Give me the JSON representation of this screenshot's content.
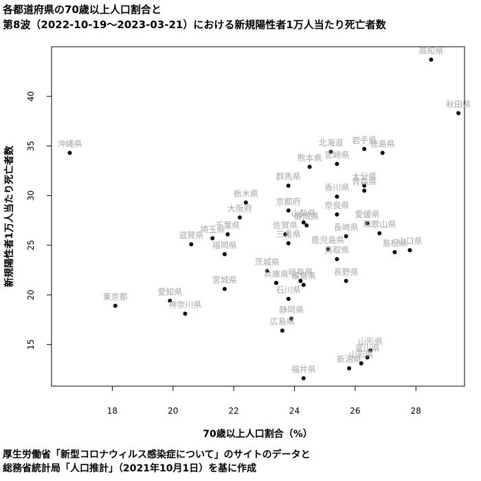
{
  "title_line1": "各都道府県の70歳以上人口割合と",
  "title_line2": "第8波（2022-10-19〜2023-03-21）における新規陽性者1万人当たり死亡者数",
  "footnote_line1": "厚生労働省「新型コロナウィルス感染症について」のサイトのデータと",
  "footnote_line2": "総務省統計局「人口推計」（2021年10月1日）を基に作成",
  "chart_data": {
    "type": "scatter",
    "xlabel": "70歳以上人口割合（%）",
    "ylabel": "新規陽性者1万人当たり死亡者数",
    "xlim": [
      16.0,
      29.6
    ],
    "ylim": [
      10.8,
      45.0
    ],
    "xticks": [
      18,
      20,
      22,
      24,
      26,
      28
    ],
    "yticks": [
      15,
      20,
      25,
      30,
      35,
      40
    ],
    "point_color": "#000000",
    "label_color": "#a6a6a6",
    "points": [
      {
        "label": "高知県",
        "x": 28.5,
        "y": 43.7
      },
      {
        "label": "秋田県",
        "x": 29.4,
        "y": 38.3
      },
      {
        "label": "沖縄県",
        "x": 16.6,
        "y": 34.3
      },
      {
        "label": "北海道",
        "x": 25.2,
        "y": 34.4
      },
      {
        "label": "岩手県",
        "x": 26.3,
        "y": 34.7
      },
      {
        "label": "徳島県",
        "x": 26.9,
        "y": 34.3
      },
      {
        "label": "宮崎県",
        "x": 25.4,
        "y": 33.2
      },
      {
        "label": "熊本県",
        "x": 24.5,
        "y": 32.9
      },
      {
        "label": "群馬県",
        "x": 23.8,
        "y": 31.0
      },
      {
        "label": "大分県",
        "x": 26.3,
        "y": 31.0
      },
      {
        "label": "香川県",
        "x": 25.4,
        "y": 29.9
      },
      {
        "label": "青森県",
        "x": 26.3,
        "y": 30.5
      },
      {
        "label": "栃木県",
        "x": 22.4,
        "y": 29.3
      },
      {
        "label": "京都府",
        "x": 23.8,
        "y": 28.5
      },
      {
        "label": "奈良県",
        "x": 25.4,
        "y": 28.1
      },
      {
        "label": "大阪府",
        "x": 22.2,
        "y": 27.8
      },
      {
        "label": "山梨県",
        "x": 24.3,
        "y": 27.3
      },
      {
        "label": "静岡県",
        "x": 24.4,
        "y": 27.0
      },
      {
        "label": "愛媛県",
        "x": 26.4,
        "y": 27.2
      },
      {
        "label": "佐賀県",
        "x": 23.7,
        "y": 26.1
      },
      {
        "label": "長崎県",
        "x": 25.7,
        "y": 25.9
      },
      {
        "label": "和歌山県",
        "x": 26.8,
        "y": 26.2
      },
      {
        "label": "千葉県",
        "x": 21.8,
        "y": 26.1
      },
      {
        "label": "埼玉県",
        "x": 21.3,
        "y": 25.7
      },
      {
        "label": "三重県",
        "x": 23.8,
        "y": 25.2
      },
      {
        "label": "滋賀県",
        "x": 20.6,
        "y": 25.1
      },
      {
        "label": "鹿児島県",
        "x": 25.1,
        "y": 24.6
      },
      {
        "label": "福岡県",
        "x": 21.7,
        "y": 24.1
      },
      {
        "label": "鳥取県",
        "x": 25.4,
        "y": 23.6
      },
      {
        "label": "島根県",
        "x": 27.3,
        "y": 24.3
      },
      {
        "label": "山口県",
        "x": 27.8,
        "y": 24.5
      },
      {
        "label": "茨城県",
        "x": 23.1,
        "y": 22.4
      },
      {
        "label": "兵庫県",
        "x": 23.4,
        "y": 21.2
      },
      {
        "label": "岐阜県",
        "x": 24.2,
        "y": 21.4
      },
      {
        "label": "福島県",
        "x": 24.3,
        "y": 21.0
      },
      {
        "label": "長野県",
        "x": 25.7,
        "y": 21.4
      },
      {
        "label": "宮城県",
        "x": 21.7,
        "y": 20.6
      },
      {
        "label": "石川県",
        "x": 23.8,
        "y": 19.6
      },
      {
        "label": "愛知県",
        "x": 19.9,
        "y": 19.4
      },
      {
        "label": "東京都",
        "x": 18.1,
        "y": 18.9
      },
      {
        "label": "神奈川県",
        "x": 20.4,
        "y": 18.1
      },
      {
        "label": "静岡県",
        "x": 23.9,
        "y": 17.6
      },
      {
        "label": "広島県",
        "x": 23.6,
        "y": 16.4
      },
      {
        "label": "山形県",
        "x": 26.5,
        "y": 14.4
      },
      {
        "label": "富山県",
        "x": 26.4,
        "y": 13.7
      },
      {
        "label": "新潟県",
        "x": 25.8,
        "y": 12.6
      },
      {
        "label": "山形県",
        "x": 26.2,
        "y": 13.1
      },
      {
        "label": "福井県",
        "x": 24.3,
        "y": 11.6
      }
    ]
  }
}
